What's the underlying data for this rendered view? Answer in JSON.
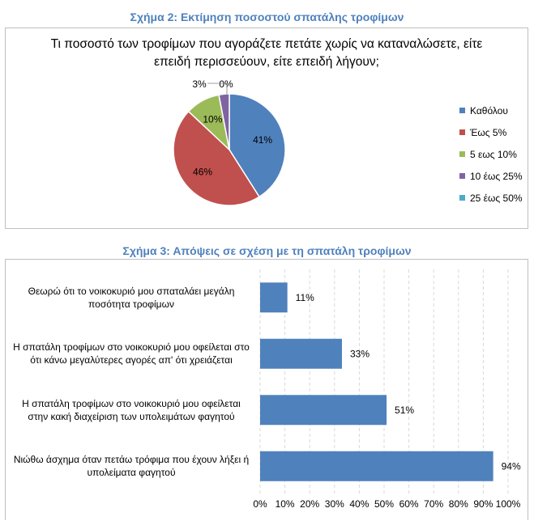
{
  "figure2": {
    "caption": "Σχήμα 2: Εκτίμηση ποσοστού σπατάλης τροφίμων"
  },
  "figure3": {
    "caption": "Σχήμα 3: Απόψεις σε σχέση με τη σπατάλη τροφίμων"
  },
  "colors": {
    "caption": "#4f81bd",
    "border": "#bfbfbf",
    "grid": "#d9d9d9"
  },
  "chart_data": [
    {
      "type": "pie",
      "title": "Τι ποσοστό των τροφίμων που αγοράζετε πετάτε χωρίς να καταναλώσετε, είτε επειδή περισσεύουν, είτε επειδή λήγουν;",
      "title_lines": [
        "Τι ποσοστό των τροφίμων που αγοράζετε πετάτε χωρίς να καταναλώσετε, είτε",
        "επειδή περισσεύουν, είτε επειδή λήγουν;"
      ],
      "categories": [
        "Καθόλου",
        "Έως 5%",
        "5 εως 10%",
        "10 έως 25%",
        "25 έως 50%"
      ],
      "values": [
        41,
        46,
        10,
        3,
        0
      ],
      "labels": [
        "41%",
        "46%",
        "10%",
        "3%",
        "0%"
      ],
      "colors": [
        "#4f81bd",
        "#c0504d",
        "#9bbb59",
        "#8064a2",
        "#4bacc6"
      ],
      "legend_position": "right"
    },
    {
      "type": "bar",
      "orientation": "horizontal",
      "categories": [
        [
          "Θεωρώ ότι το νοικοκυριό μου σπαταλάει μεγάλη",
          "ποσότητα τροφίμων"
        ],
        [
          "Η σπατάλη τροφίμων στο νοικοκυριό μου οφείλεται στο",
          "ότι κάνω μεγαλύτερες αγορές απ' ότι χρειάζεται"
        ],
        [
          "Η σπατάλη τροφίμων στο νοικοκυριό μου οφείλεται",
          "στην κακή διαχείριση των υπολειμάτων φαγητού"
        ],
        [
          "Νιώθω άσχημα όταν πετάω τρόφιμα που έχουν λήξει ή",
          "υπολείματα φαγητού"
        ]
      ],
      "values": [
        11,
        33,
        51,
        94
      ],
      "labels": [
        "11%",
        "33%",
        "51%",
        "94%"
      ],
      "xlim": [
        0,
        100
      ],
      "ticks": [
        "0%",
        "10%",
        "20%",
        "30%",
        "40%",
        "50%",
        "60%",
        "70%",
        "80%",
        "90%",
        "100%"
      ],
      "color": "#4f81bd",
      "grid": true
    }
  ]
}
